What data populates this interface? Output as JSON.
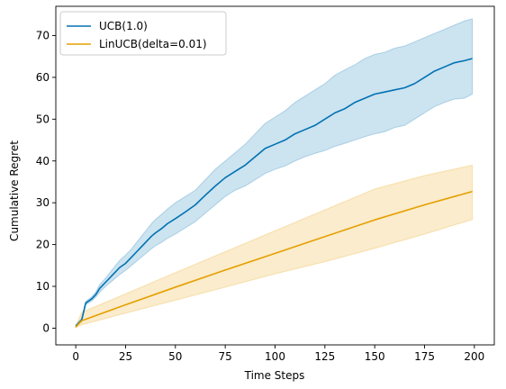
{
  "chart_data": {
    "type": "line",
    "title": "",
    "xlabel": "Time Steps",
    "ylabel": "Cumulative Regret",
    "xlim": [
      -10,
      210
    ],
    "ylim": [
      -4,
      77
    ],
    "xticks": [
      0,
      25,
      50,
      75,
      100,
      125,
      150,
      175,
      200
    ],
    "yticks": [
      0,
      10,
      20,
      30,
      40,
      50,
      60,
      70
    ],
    "grid": false,
    "legend_position": "upper left",
    "series": [
      {
        "name": "UCB(1.0)",
        "color": "#0072b2",
        "band_color": "#0072b2",
        "x": [
          0,
          3,
          5,
          8,
          10,
          12,
          15,
          18,
          20,
          22,
          25,
          28,
          30,
          33,
          36,
          38,
          40,
          43,
          46,
          50,
          55,
          60,
          65,
          70,
          75,
          80,
          85,
          90,
          95,
          100,
          105,
          110,
          115,
          120,
          125,
          130,
          135,
          140,
          145,
          150,
          155,
          160,
          165,
          170,
          175,
          180,
          185,
          190,
          195,
          199
        ],
        "mean": [
          0.5,
          2.0,
          6.0,
          7.0,
          8.0,
          9.5,
          11.0,
          12.5,
          13.5,
          14.5,
          15.5,
          17.0,
          18.0,
          19.5,
          21.0,
          22.0,
          22.8,
          23.8,
          25.0,
          26.2,
          27.8,
          29.5,
          31.8,
          34.0,
          36.0,
          37.5,
          39.0,
          41.0,
          43.0,
          44.0,
          45.0,
          46.5,
          47.5,
          48.5,
          50.0,
          51.5,
          52.5,
          54.0,
          55.0,
          56.0,
          56.5,
          57.0,
          57.5,
          58.5,
          60.0,
          61.5,
          62.5,
          63.5,
          64.0,
          64.5
        ],
        "lower": [
          0.3,
          1.6,
          5.6,
          6.5,
          7.4,
          8.6,
          10.0,
          11.2,
          12.0,
          12.8,
          13.8,
          15.0,
          15.8,
          17.0,
          18.2,
          19.0,
          19.7,
          20.5,
          21.5,
          22.5,
          24.0,
          25.5,
          27.5,
          29.5,
          31.5,
          33.0,
          34.0,
          35.5,
          37.0,
          38.0,
          38.8,
          40.0,
          41.0,
          41.8,
          42.5,
          43.5,
          44.2,
          45.0,
          45.8,
          46.5,
          47.0,
          48.0,
          48.5,
          50.0,
          51.5,
          53.0,
          54.0,
          54.8,
          55.0,
          56.0
        ],
        "upper": [
          0.7,
          2.4,
          6.4,
          7.5,
          8.6,
          10.4,
          12.0,
          13.8,
          15.0,
          16.2,
          17.5,
          19.0,
          20.2,
          22.0,
          23.8,
          25.0,
          26.0,
          27.2,
          28.5,
          30.0,
          31.5,
          33.0,
          35.5,
          38.0,
          40.0,
          42.0,
          44.0,
          46.5,
          49.0,
          50.5,
          52.0,
          54.0,
          55.5,
          57.0,
          58.5,
          60.5,
          61.8,
          63.0,
          64.5,
          65.5,
          66.0,
          67.0,
          67.5,
          68.5,
          69.5,
          70.5,
          71.5,
          72.5,
          73.5,
          74.0
        ]
      },
      {
        "name": "LinUCB(delta=0.01)",
        "color": "#e69f00",
        "band_color": "#e69f00",
        "x": [
          0,
          3,
          25,
          50,
          75,
          100,
          125,
          150,
          175,
          199
        ],
        "mean": [
          0.3,
          1.8,
          5.6,
          9.8,
          13.9,
          17.9,
          21.9,
          25.9,
          29.5,
          32.7
        ],
        "lower": [
          0.1,
          0.8,
          3.6,
          6.7,
          9.8,
          13.0,
          15.9,
          19.1,
          22.5,
          26.0
        ],
        "upper": [
          0.5,
          3.8,
          8.2,
          13.3,
          18.3,
          23.3,
          28.3,
          33.3,
          36.5,
          39.0
        ]
      }
    ]
  }
}
